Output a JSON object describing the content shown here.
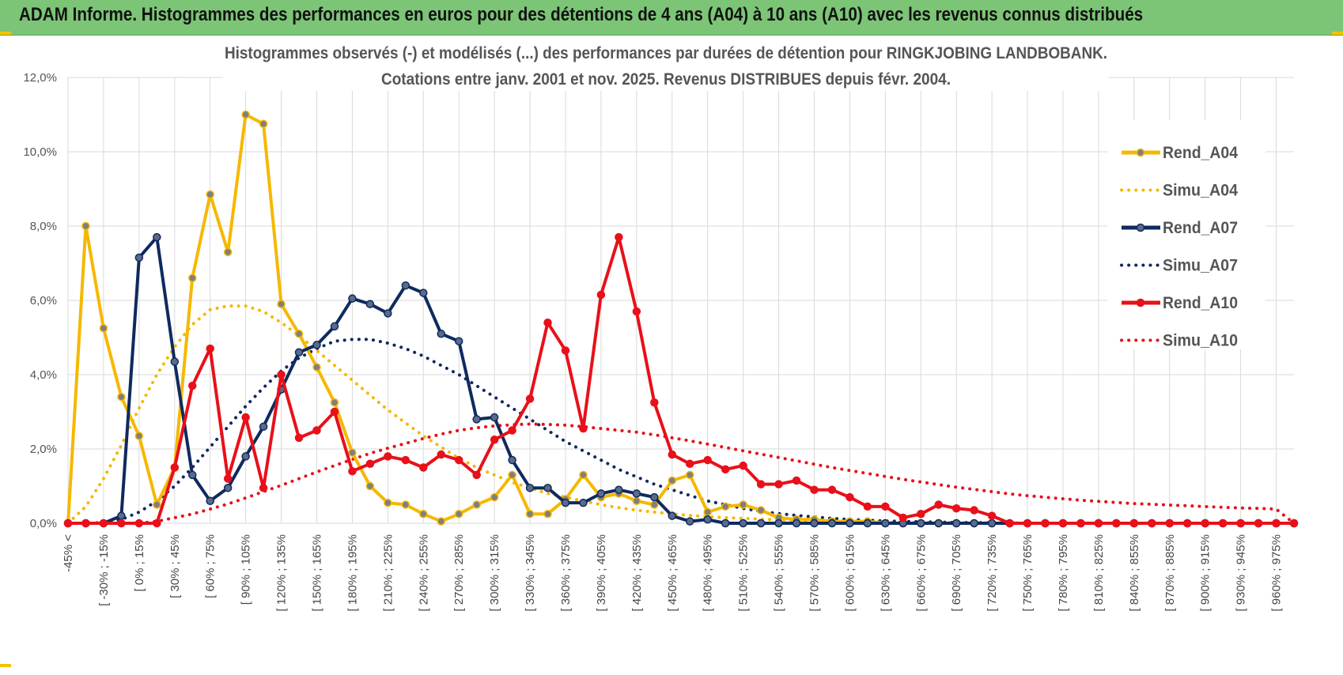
{
  "header": {
    "title": "ADAM Informe. Histogrammes des performances en euros pour des détentions de 4 ans (A04) à 10 ans (A10) avec les revenus connus distribués"
  },
  "chart_data": {
    "type": "line",
    "title_lines": [
      "Histogrammes observés (-) et modélisés (...) des performances par durées de détention pour RINGKJOBING LANDBOBANK.",
      "Cotations entre janv. 2001 et nov. 2025. Revenus DISTRIBUES depuis févr. 2004."
    ],
    "ylim": [
      0,
      12
    ],
    "yticks": [
      "0,0%",
      "2,0%",
      "4,0%",
      "6,0%",
      "8,0%",
      "10,0%",
      "12,0%"
    ],
    "grid": true,
    "legend_position": "right",
    "x_labels": [
      "-45% <",
      "[ -30% ; -15%",
      "[ 0% ; 15%",
      "[ 30% ; 45%",
      "[ 60% ; 75%",
      "[ 90% ; 105%",
      "[ 120% ; 135%",
      "[ 150% ; 165%",
      "[ 180% ; 195%",
      "[ 210% ; 225%",
      "[ 240% ; 255%",
      "[ 270% ; 285%",
      "[ 300% ; 315%",
      "[ 330% ; 345%",
      "[ 360% ; 375%",
      "[ 390% ; 405%",
      "[ 420% ; 435%",
      "[ 450% ; 465%",
      "[ 480% ; 495%",
      "[ 510% ; 525%",
      "[ 540% ; 555%",
      "[ 570% ; 585%",
      "[ 600% ; 615%",
      "[ 630% ; 645%",
      "[ 660% ; 675%",
      "[ 690% ; 705%",
      "[ 720% ; 735%",
      "[ 750% ; 765%",
      "[ 780% ; 795%",
      "[ 810% ; 825%",
      "[ 840% ; 855%",
      "[ 870% ; 885%",
      "[ 900% ; 915%",
      "[ 930% ; 945%",
      "[ 960% ; 975%"
    ],
    "series": [
      {
        "name": "Rend_A04",
        "color": "#f5b800",
        "style": "solid",
        "values": [
          0,
          8.0,
          5.25,
          3.4,
          2.35,
          0.5,
          1.5,
          6.6,
          8.85,
          7.3,
          11.0,
          10.75,
          5.9,
          5.1,
          4.2,
          3.25,
          1.9,
          1.0,
          0.55,
          0.5,
          0.25,
          0.05,
          0.25,
          0.5,
          0.7,
          1.3,
          0.25,
          0.25,
          0.65,
          1.3,
          0.7,
          0.8,
          0.6,
          0.5,
          1.15,
          1.3,
          0.3,
          0.45,
          0.5,
          0.35,
          0.15,
          0.1,
          0.1,
          0.05,
          0.05,
          0.05,
          0,
          0,
          0,
          0,
          0,
          0,
          0,
          0,
          0,
          0,
          0,
          0,
          0,
          0,
          0,
          0,
          0,
          0,
          0,
          0,
          0,
          0,
          0,
          0
        ]
      },
      {
        "name": "Simu_A04",
        "color": "#f5b800",
        "style": "dotted",
        "values": [
          0,
          0.45,
          1.2,
          2.1,
          3.1,
          4.0,
          4.75,
          5.35,
          5.75,
          5.85,
          5.85,
          5.7,
          5.4,
          5.05,
          4.65,
          4.25,
          3.85,
          3.45,
          3.05,
          2.7,
          2.35,
          2.05,
          1.75,
          1.5,
          1.3,
          1.1,
          0.95,
          0.8,
          0.7,
          0.6,
          0.5,
          0.42,
          0.35,
          0.3,
          0.25,
          0.21,
          0.18,
          0.15,
          0.13,
          0.11,
          0.09,
          0.08,
          0.07,
          0.06,
          0.05,
          0.04,
          0.03,
          0.03,
          0.02,
          0.02,
          0.02,
          0.01,
          0.01,
          0.01,
          0,
          0,
          0,
          0,
          0,
          0,
          0,
          0,
          0,
          0,
          0,
          0,
          0,
          0,
          0,
          0
        ]
      },
      {
        "name": "Rend_A07",
        "color": "#0f2a5e",
        "style": "solid",
        "values": [
          0,
          0,
          0,
          0.2,
          7.15,
          7.7,
          4.35,
          1.3,
          0.6,
          0.95,
          1.8,
          2.6,
          3.6,
          4.6,
          4.8,
          5.3,
          6.05,
          5.9,
          5.65,
          6.4,
          6.2,
          5.1,
          4.9,
          2.8,
          2.85,
          1.7,
          0.95,
          0.95,
          0.55,
          0.55,
          0.8,
          0.9,
          0.8,
          0.7,
          0.2,
          0.05,
          0.1,
          0,
          0,
          0,
          0,
          0,
          0,
          0,
          0,
          0,
          0,
          0,
          0,
          0,
          0,
          0,
          0,
          0,
          0,
          0,
          0,
          0,
          0,
          0,
          0,
          0,
          0,
          0,
          0,
          0,
          0,
          0,
          0,
          0
        ]
      },
      {
        "name": "Simu_A07",
        "color": "#0f2a5e",
        "style": "dotted",
        "values": [
          0,
          0,
          0.02,
          0.1,
          0.3,
          0.6,
          1.0,
          1.5,
          2.05,
          2.6,
          3.15,
          3.65,
          4.1,
          4.45,
          4.7,
          4.9,
          4.95,
          4.95,
          4.85,
          4.7,
          4.5,
          4.25,
          4.0,
          3.7,
          3.4,
          3.1,
          2.8,
          2.5,
          2.2,
          1.95,
          1.7,
          1.45,
          1.25,
          1.05,
          0.9,
          0.75,
          0.6,
          0.5,
          0.4,
          0.32,
          0.26,
          0.21,
          0.17,
          0.13,
          0.1,
          0.08,
          0.06,
          0.05,
          0.04,
          0.03,
          0.02,
          0.02,
          0.01,
          0.01,
          0,
          0,
          0,
          0,
          0,
          0,
          0,
          0,
          0,
          0,
          0,
          0,
          0,
          0,
          0,
          0
        ]
      },
      {
        "name": "Rend_A10",
        "color": "#e8101a",
        "style": "solid",
        "values": [
          0,
          0,
          0,
          0,
          0,
          0,
          1.5,
          3.7,
          4.7,
          1.2,
          2.85,
          0.95,
          4.0,
          2.3,
          2.5,
          3.0,
          1.4,
          1.6,
          1.8,
          1.7,
          1.5,
          1.85,
          1.7,
          1.3,
          2.25,
          2.5,
          3.35,
          5.4,
          4.65,
          2.55,
          6.15,
          7.7,
          5.7,
          3.25,
          1.85,
          1.6,
          1.7,
          1.45,
          1.55,
          1.05,
          1.05,
          1.15,
          0.9,
          0.9,
          0.7,
          0.45,
          0.45,
          0.15,
          0.25,
          0.5,
          0.4,
          0.35,
          0.2,
          0,
          0,
          0,
          0,
          0,
          0,
          0,
          0,
          0,
          0,
          0,
          0,
          0,
          0,
          0,
          0,
          0
        ]
      },
      {
        "name": "Simu_A10",
        "color": "#e8101a",
        "style": "dotted",
        "values": [
          0,
          0,
          0,
          0,
          0,
          0.05,
          0.15,
          0.25,
          0.38,
          0.52,
          0.68,
          0.85,
          1.02,
          1.2,
          1.38,
          1.55,
          1.72,
          1.88,
          2.02,
          2.15,
          2.28,
          2.4,
          2.5,
          2.57,
          2.62,
          2.65,
          2.67,
          2.66,
          2.64,
          2.6,
          2.55,
          2.5,
          2.45,
          2.38,
          2.3,
          2.22,
          2.13,
          2.04,
          1.95,
          1.86,
          1.77,
          1.68,
          1.59,
          1.5,
          1.42,
          1.34,
          1.26,
          1.18,
          1.11,
          1.04,
          0.97,
          0.91,
          0.85,
          0.79,
          0.74,
          0.7,
          0.66,
          0.62,
          0.59,
          0.56,
          0.53,
          0.51,
          0.49,
          0.47,
          0.45,
          0.43,
          0.41,
          0.4,
          0.38,
          0
        ]
      }
    ],
    "legend": [
      "Rend_A04",
      "Simu_A04",
      "Rend_A07",
      "Simu_A07",
      "Rend_A10",
      "Simu_A10"
    ]
  }
}
